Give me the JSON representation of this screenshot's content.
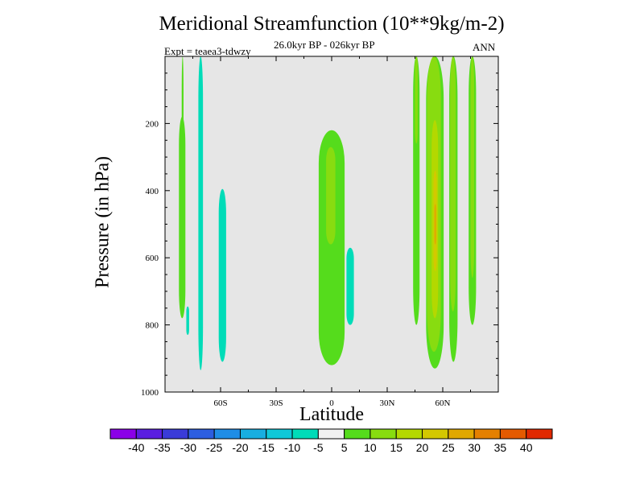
{
  "chart_data": {
    "type": "heatmap",
    "title": "Meridional Streamfunction (10**9kg/m-2)",
    "subtitle_left": "Expt = teaea3-tdwzy",
    "subtitle_center": "26.0kyr BP - 026kyr BP",
    "subtitle_right": "ANN",
    "xlabel": "Latitude",
    "ylabel": "Pressure (in hPa)",
    "xlim": [
      -90,
      90
    ],
    "ylim": [
      1000,
      0
    ],
    "x_ticks": [
      {
        "value": -60,
        "label": "60S"
      },
      {
        "value": -30,
        "label": "30S"
      },
      {
        "value": 0,
        "label": "0"
      },
      {
        "value": 30,
        "label": "30N"
      },
      {
        "value": 60,
        "label": "60N"
      }
    ],
    "y_ticks": [
      {
        "value": 200,
        "label": "200"
      },
      {
        "value": 400,
        "label": "400"
      },
      {
        "value": 600,
        "label": "600"
      },
      {
        "value": 800,
        "label": "800"
      },
      {
        "value": 1000,
        "label": "1000"
      }
    ],
    "colorbar": {
      "levels": [
        -40,
        -35,
        -30,
        -25,
        -20,
        -15,
        -10,
        -5,
        5,
        10,
        15,
        20,
        25,
        30,
        35,
        40
      ],
      "colors": [
        "#8b00e8",
        "#5a1ee0",
        "#3a3bd8",
        "#2c5ee0",
        "#1f8de6",
        "#18aee0",
        "#10c8d8",
        "#00dcb8",
        "#f0f0f0",
        "#55dc1c",
        "#88dc10",
        "#b4d800",
        "#d4c800",
        "#e0a800",
        "#e48000",
        "#e45a00",
        "#e02800"
      ],
      "labels": [
        "-40",
        "-35",
        "-30",
        "-25",
        "-20",
        "-15",
        "-10",
        "-5",
        "5",
        "10",
        "15",
        "20",
        "25",
        "30",
        "35",
        "40"
      ]
    },
    "background_color": "#e6e6e6",
    "regions": [
      {
        "name": "sh-polar-narrow-positive",
        "value": 7,
        "lat": [
          -81,
          -80
        ],
        "p": [
          0,
          775
        ]
      },
      {
        "name": "sh-polar-band-positive",
        "value": 7,
        "lat": [
          -82.5,
          -79
        ],
        "p": [
          180,
          780
        ]
      },
      {
        "name": "sh-polar-small-negative",
        "value": -7,
        "lat": [
          -78.5,
          -77
        ],
        "p": [
          745,
          830
        ]
      },
      {
        "name": "sh-subpolar-narrow-negative",
        "value": -7,
        "lat": [
          -72,
          -69.5
        ],
        "p": [
          0,
          935
        ]
      },
      {
        "name": "sh-midlat-cell-negative",
        "value": -7,
        "lat": [
          -61,
          -57
        ],
        "p": [
          395,
          910
        ]
      },
      {
        "name": "tropical-cell-positive",
        "value": 7,
        "lat": [
          -7,
          7
        ],
        "p": [
          220,
          920
        ]
      },
      {
        "name": "tropical-core-positive",
        "value": 12,
        "lat": [
          -3,
          2
        ],
        "p": [
          270,
          560
        ]
      },
      {
        "name": "tropical-small-negative",
        "value": -7,
        "lat": [
          8,
          12
        ],
        "p": [
          570,
          800
        ]
      },
      {
        "name": "nh-band-1-positive",
        "value": 7,
        "lat": [
          44,
          47.5
        ],
        "p": [
          0,
          800
        ]
      },
      {
        "name": "nh-band-1-core",
        "value": 12,
        "lat": [
          45,
          46.5
        ],
        "p": [
          0,
          260
        ]
      },
      {
        "name": "nh-band-2-positive",
        "value": 7,
        "lat": [
          51,
          60.5
        ],
        "p": [
          0,
          930
        ]
      },
      {
        "name": "nh-band-2-core",
        "value": 12,
        "lat": [
          51.5,
          59
        ],
        "p": [
          0,
          880
        ]
      },
      {
        "name": "nh-band-2-inner",
        "value": 17,
        "lat": [
          54,
          57.5
        ],
        "p": [
          190,
          780
        ]
      },
      {
        "name": "nh-band-2-peak",
        "value": 22,
        "lat": [
          55,
          56.8
        ],
        "p": [
          340,
          640
        ]
      },
      {
        "name": "nh-band-2-max",
        "value": 27,
        "lat": [
          55.5,
          56.4
        ],
        "p": [
          440,
          560
        ]
      },
      {
        "name": "nh-band-3-positive",
        "value": 7,
        "lat": [
          63.5,
          68
        ],
        "p": [
          0,
          910
        ]
      },
      {
        "name": "nh-band-3-core",
        "value": 12,
        "lat": [
          64,
          67
        ],
        "p": [
          0,
          760
        ]
      },
      {
        "name": "nh-band-4-positive",
        "value": 7,
        "lat": [
          74,
          78
        ],
        "p": [
          0,
          800
        ]
      },
      {
        "name": "nh-band-4-core",
        "value": 12,
        "lat": [
          75,
          77
        ],
        "p": [
          0,
          660
        ]
      }
    ]
  }
}
